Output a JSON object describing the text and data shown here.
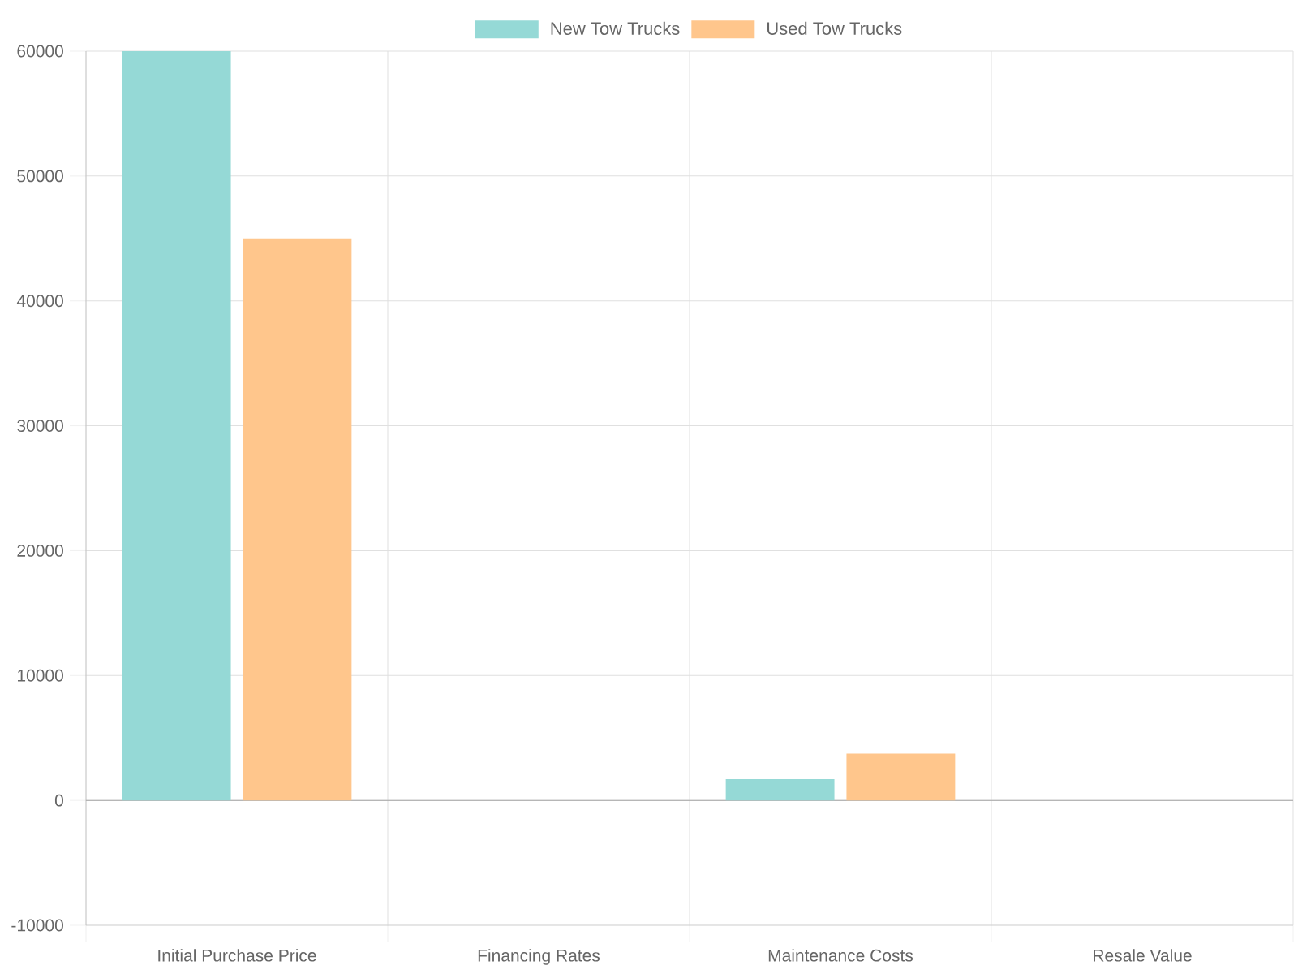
{
  "chart_data": {
    "type": "bar",
    "categories": [
      "Initial Purchase Price",
      "Financing Rates",
      "Maintenance Costs",
      "Resale Value"
    ],
    "series": [
      {
        "name": "New Tow Trucks",
        "color": "#95d9d6",
        "values": [
          60000,
          0,
          1700,
          0
        ]
      },
      {
        "name": "Used Tow Trucks",
        "color": "#ffc68c",
        "values": [
          45000,
          0,
          3750,
          0
        ]
      }
    ],
    "ylim": [
      -10000,
      60000
    ],
    "yticks": [
      -10000,
      0,
      10000,
      20000,
      30000,
      40000,
      50000,
      60000
    ],
    "grid": true,
    "legend": "top"
  }
}
